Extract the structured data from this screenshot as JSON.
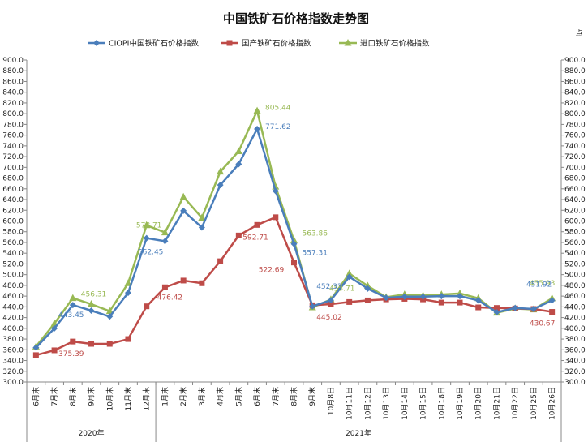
{
  "chart_data": {
    "type": "line",
    "title": "中国铁矿石价格指数走势图",
    "unit_label": "点",
    "ylim": [
      300,
      900
    ],
    "ystep": 20,
    "grid": false,
    "legend_position": "top",
    "categories": [
      "6月末",
      "7月末",
      "8月末",
      "9月末",
      "10月末",
      "11月末",
      "12月末",
      "1月末",
      "2月末",
      "3月末",
      "4月末",
      "5月末",
      "6月末",
      "7月末",
      "8月末",
      "9月末",
      "10月8日",
      "10月11日",
      "10月12日",
      "10月13日",
      "10月14日",
      "10月15日",
      "10月18日",
      "10月19日",
      "10月20日",
      "10月21日",
      "10月22日",
      "10月25日",
      "10月26日"
    ],
    "groups": [
      {
        "label": "2020年",
        "start": 0,
        "end": 6
      },
      {
        "label": "2021年",
        "start": 7,
        "end": 28
      }
    ],
    "series": [
      {
        "name": "CIOPI中国铁矿石价格指数",
        "color": "#4a7ebb",
        "marker": "diamond",
        "values": [
          364,
          400,
          443.45,
          433,
          422,
          466,
          568,
          562.45,
          619,
          588,
          667,
          706,
          771.62,
          656,
          557.31,
          441,
          452.33,
          496,
          474,
          457,
          459,
          459,
          460,
          460,
          452,
          430,
          438,
          436,
          451.92
        ]
      },
      {
        "name": "国产铁矿石价格指数",
        "color": "#be4b48",
        "marker": "square",
        "values": [
          350,
          359,
          375.39,
          371,
          371,
          380,
          441,
          476.42,
          489,
          484,
          525,
          573,
          592.71,
          607,
          522.69,
          443,
          445.02,
          449,
          452,
          454,
          455,
          454,
          448,
          448,
          439,
          438,
          437,
          436,
          430.67
        ]
      },
      {
        "name": "进口铁矿石价格指数",
        "color": "#98b954",
        "marker": "triangle",
        "values": [
          366,
          409,
          456.31,
          445,
          432,
          484,
          592,
          578.71,
          645,
          606,
          692,
          730,
          805.44,
          664,
          563.86,
          439,
          453.71,
          502,
          479,
          458,
          463,
          461,
          463,
          465,
          456,
          429,
          437,
          435,
          455.93
        ]
      }
    ],
    "data_labels": [
      {
        "series": 2,
        "index": 2,
        "text": "456.31"
      },
      {
        "series": 0,
        "index": 2,
        "text": "443.45"
      },
      {
        "series": 1,
        "index": 2,
        "text": "375.39"
      },
      {
        "series": 2,
        "index": 7,
        "text": "578.71"
      },
      {
        "series": 0,
        "index": 7,
        "text": "562.45"
      },
      {
        "series": 1,
        "index": 7,
        "text": "476.42"
      },
      {
        "series": 2,
        "index": 12,
        "text": "805.44"
      },
      {
        "series": 0,
        "index": 12,
        "text": "771.62"
      },
      {
        "series": 1,
        "index": 12,
        "text": "592.71"
      },
      {
        "series": 2,
        "index": 14,
        "text": "563.86"
      },
      {
        "series": 0,
        "index": 14,
        "text": "557.31"
      },
      {
        "series": 1,
        "index": 14,
        "text": "522.69"
      },
      {
        "series": 2,
        "index": 16,
        "text": "453.71"
      },
      {
        "series": 0,
        "index": 16,
        "text": "452.33"
      },
      {
        "series": 1,
        "index": 16,
        "text": "445.02"
      },
      {
        "series": 2,
        "index": 28,
        "text": "455.93"
      },
      {
        "series": 0,
        "index": 28,
        "text": "451.92"
      },
      {
        "series": 1,
        "index": 28,
        "text": "430.67"
      }
    ]
  }
}
